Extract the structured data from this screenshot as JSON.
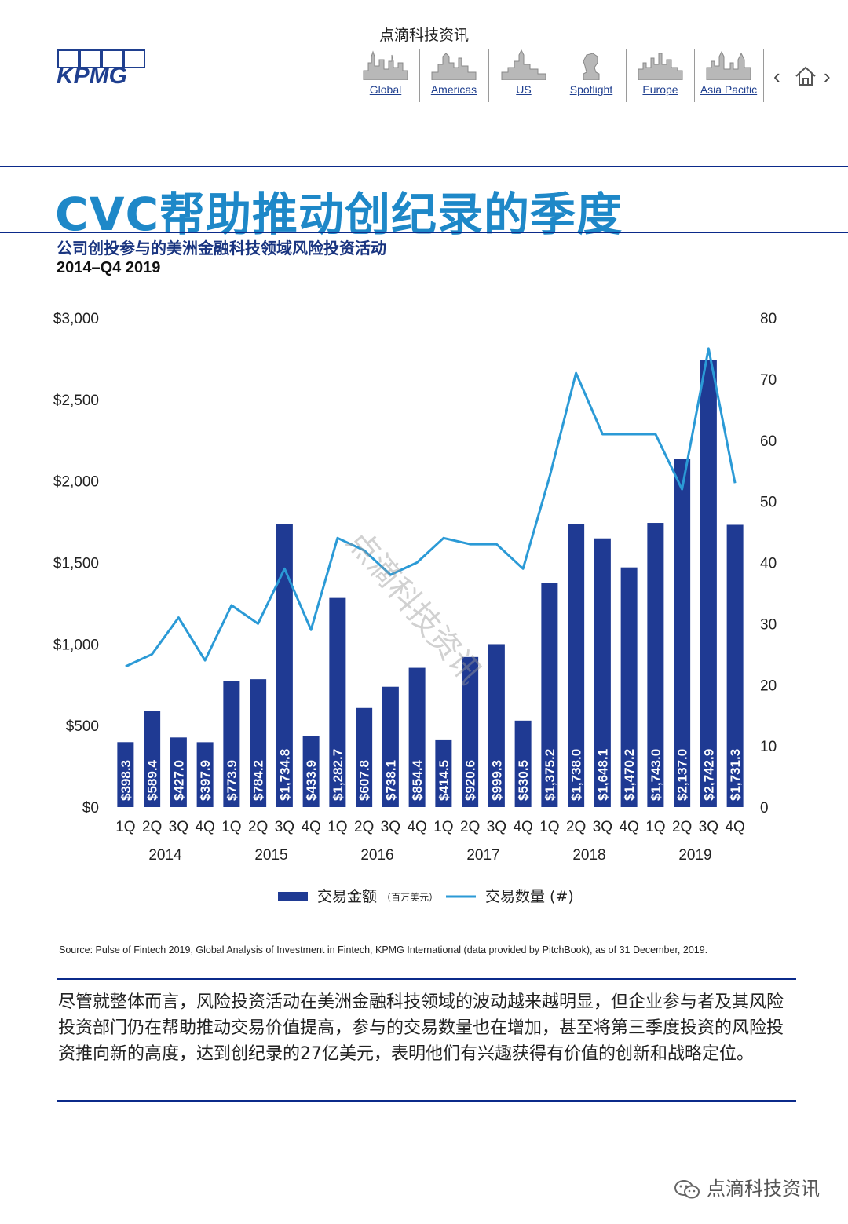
{
  "header": {
    "brand_text": "点滴科技资讯",
    "logo_text": "KPMG",
    "nav": [
      {
        "label": "Global",
        "icon": "global-skyline-icon"
      },
      {
        "label": "Americas",
        "icon": "americas-skyline-icon"
      },
      {
        "label": "US",
        "icon": "us-skyline-icon"
      },
      {
        "label": "Spotlight",
        "icon": "spotlight-bust-icon"
      },
      {
        "label": "Europe",
        "icon": "europe-skyline-icon"
      },
      {
        "label": "Asia Pacific",
        "icon": "asia-pacific-skyline-icon"
      }
    ],
    "prev_icon": "chevron-left-icon",
    "home_icon": "home-icon",
    "next_icon": "chevron-right-icon"
  },
  "title": "CVC帮助推动创纪录的季度",
  "subtitle": "公司创投参与的美洲金融科技领域风险投资活动",
  "period": "2014–Q4 2019",
  "chart_data": {
    "type": "bar",
    "categories": [
      "1Q",
      "2Q",
      "3Q",
      "4Q",
      "1Q",
      "2Q",
      "3Q",
      "4Q",
      "1Q",
      "2Q",
      "3Q",
      "4Q",
      "1Q",
      "2Q",
      "3Q",
      "4Q",
      "1Q",
      "2Q",
      "3Q",
      "4Q",
      "1Q",
      "2Q",
      "3Q",
      "4Q"
    ],
    "year_groups": [
      "2014",
      "2015",
      "2016",
      "2017",
      "2018",
      "2019"
    ],
    "series": [
      {
        "name": "交易金额",
        "name_suffix": "（百万美元）",
        "type": "bar",
        "axis": "left",
        "color": "#1f3a93",
        "values": [
          398.3,
          589.4,
          427.0,
          397.9,
          773.9,
          784.2,
          1734.8,
          433.9,
          1282.7,
          607.8,
          738.1,
          854.4,
          414.5,
          920.6,
          999.3,
          530.5,
          1375.2,
          1738.0,
          1648.1,
          1470.2,
          1743.0,
          2137.0,
          2742.9,
          1731.3
        ],
        "labels": [
          "$398.3",
          "$589.4",
          "$427.0",
          "$397.9",
          "$773.9",
          "$784.2",
          "$1,734.8",
          "$433.9",
          "$1,282.7",
          "$607.8",
          "$738.1",
          "$854.4",
          "$414.5",
          "$920.6",
          "$999.3",
          "$530.5",
          "$1,375.2",
          "$1,738.0",
          "$1,648.1",
          "$1,470.2",
          "$1,743.0",
          "$2,137.0",
          "$2,742.9",
          "$1,731.3"
        ]
      },
      {
        "name": "交易数量 (#)",
        "type": "line",
        "axis": "right",
        "color": "#2b9ad6",
        "values": [
          23,
          25,
          31,
          24,
          33,
          30,
          39,
          29,
          44,
          42,
          38,
          40,
          44,
          43,
          43,
          39,
          54,
          71,
          61,
          61,
          61,
          52,
          75,
          53
        ]
      }
    ],
    "y_left": {
      "min": 0,
      "max": 3000,
      "ticks": [
        "$0",
        "$500",
        "$1,000",
        "$1,500",
        "$2,000",
        "$2,500",
        "$3,000"
      ]
    },
    "y_right": {
      "min": 0,
      "max": 80,
      "ticks": [
        "0",
        "10",
        "20",
        "30",
        "40",
        "50",
        "60",
        "70",
        "80"
      ]
    },
    "legend_position": "bottom-center",
    "watermark": "点滴科技资讯",
    "grid": false
  },
  "source": "Source: Pulse of Fintech 2019, Global Analysis of Investment in Fintech, KPMG International (data provided by PitchBook), as of 31 December, 2019.",
  "paragraph": "尽管就整体而言，风险投资活动在美洲金融科技领域的波动越来越明显，但企业参与者及其风险投资部门仍在帮助推动交易价值提高，参与的交易数量也在增加，甚至将第三季度投资的风险投资推向新的高度，达到创纪录的27亿美元，表明他们有兴趣获得有价值的创新和战略定位。",
  "footer_watermark": "点滴科技资讯",
  "footer_icon": "wechat-icon"
}
